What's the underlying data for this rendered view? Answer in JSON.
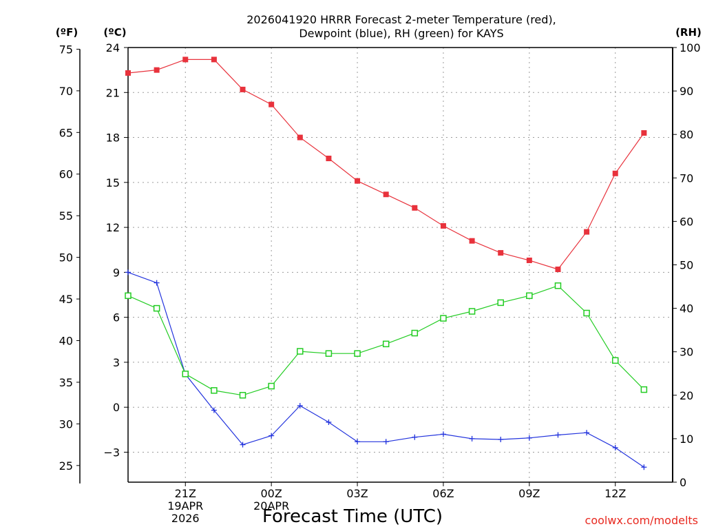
{
  "chart_data": {
    "type": "line",
    "title_lines": [
      "2026041920 HRRR Forecast 2-meter Temperature (red),",
      "Dewpoint (blue), RH (green) for KAYS"
    ],
    "x_hours": [
      19,
      20,
      21,
      22,
      23,
      24,
      25,
      26,
      27,
      28,
      29,
      30,
      31,
      32,
      33,
      34,
      35,
      36,
      37,
      38
    ],
    "xlim": [
      19,
      38
    ],
    "x_ticks": [
      {
        "hour": 21,
        "lines": [
          "21Z",
          "19APR",
          "2026"
        ]
      },
      {
        "hour": 24,
        "lines": [
          "00Z",
          "20APR"
        ]
      },
      {
        "hour": 27,
        "lines": [
          "03Z"
        ]
      },
      {
        "hour": 30,
        "lines": [
          "06Z"
        ]
      },
      {
        "hour": 33,
        "lines": [
          "09Z"
        ]
      },
      {
        "hour": 36,
        "lines": [
          "12Z"
        ]
      }
    ],
    "xlabel": "Forecast Time (UTC)",
    "left_axis_c": {
      "unit": "(ºC)",
      "range": [
        -5,
        24
      ],
      "ticks": [
        24,
        21,
        18,
        15,
        12,
        9,
        6,
        3,
        0,
        -3
      ],
      "tick_labels": [
        "24",
        "21",
        "18",
        "15",
        "12",
        "9",
        "6",
        "3",
        "0",
        "−3"
      ]
    },
    "left_axis_f": {
      "unit": "(ºF)",
      "ticks": [
        75,
        70,
        65,
        60,
        55,
        50,
        45,
        40,
        35,
        30,
        25
      ]
    },
    "right_axis_rh": {
      "unit": "(RH)",
      "range": [
        0,
        100
      ],
      "ticks": [
        100,
        90,
        80,
        70,
        60,
        50,
        40,
        30,
        20,
        10,
        0
      ]
    },
    "series": [
      {
        "name": "2-meter Temperature",
        "color": "#e8323c",
        "marker": "filled-square",
        "axis": "celsius",
        "values": [
          22.3,
          22.5,
          23.2,
          23.2,
          21.2,
          20.2,
          18.0,
          16.6,
          15.1,
          14.2,
          13.3,
          12.1,
          11.1,
          10.3,
          9.8,
          9.2,
          11.7,
          15.6,
          18.3,
          null
        ]
      },
      {
        "name": "Dewpoint",
        "color": "#2233dd",
        "marker": "plus",
        "axis": "celsius",
        "values": [
          9.0,
          8.3,
          2.2,
          -0.2,
          -2.5,
          -1.9,
          0.1,
          -1.0,
          -2.3,
          -2.3,
          -2.0,
          -1.8,
          -2.1,
          -2.15,
          -2.05,
          -1.85,
          -1.7,
          -2.7,
          -4.0,
          null
        ]
      },
      {
        "name": "RH",
        "color": "#22cc22",
        "marker": "open-square",
        "axis": "rh",
        "values": [
          42.9,
          40.0,
          24.9,
          21.1,
          20.0,
          22.1,
          30.1,
          29.6,
          29.6,
          31.8,
          34.3,
          37.7,
          39.3,
          41.3,
          42.9,
          45.2,
          38.9,
          28.0,
          21.3,
          null
        ]
      }
    ],
    "grid": true,
    "credit": "coolwx.com/modelts"
  },
  "colors": {
    "grid": "#9a9a9a",
    "axis": "#000000",
    "credit": "#e8281f"
  }
}
